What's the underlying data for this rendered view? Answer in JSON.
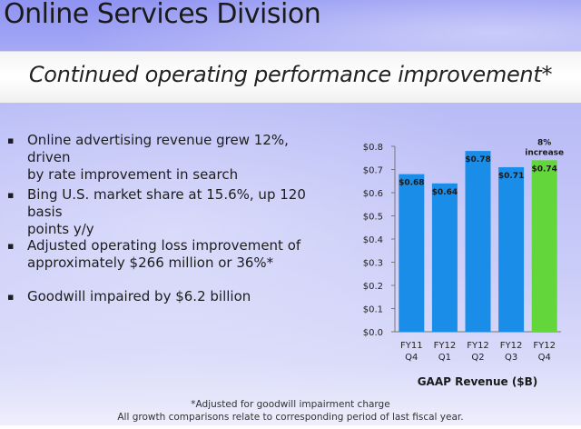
{
  "slide": {
    "title": "Online Services Division",
    "subtitle": "Continued operating performance improvement*",
    "bullets": [
      {
        "line1": "Online advertising revenue grew 12%, driven",
        "line2": "by rate improvement in search"
      },
      {
        "line1": "Bing U.S. market share at 15.6%, up 120 basis",
        "line2": "points y/y"
      },
      {
        "line1": "Adjusted operating loss improvement of",
        "line2": "approximately $266 million or 36%*"
      },
      {
        "line1": "Goodwill impaired by $6.2 billion",
        "line2": ""
      }
    ],
    "bullet_marker": "▪",
    "footnote_1": "*Adjusted for goodwill impairment charge",
    "footnote_2": "All growth comparisons relate to corresponding period of last fiscal year."
  },
  "chart_data": {
    "type": "bar",
    "categories": [
      [
        "FY11",
        "Q4"
      ],
      [
        "FY12",
        "Q1"
      ],
      [
        "FY12",
        "Q2"
      ],
      [
        "FY12",
        "Q3"
      ],
      [
        "FY12",
        "Q4"
      ]
    ],
    "values": [
      0.68,
      0.64,
      0.78,
      0.71,
      0.74
    ],
    "data_labels": [
      "$0.68",
      "$0.64",
      "$0.78",
      "$0.71",
      "$0.74"
    ],
    "xlabel": "GAAP Revenue ($B)",
    "ylim": [
      0,
      0.8
    ],
    "yticks": [
      0.0,
      0.1,
      0.2,
      0.3,
      0.4,
      0.5,
      0.6,
      0.7,
      0.8
    ],
    "ytick_labels": [
      "$0.0",
      "$0.1",
      "$0.2",
      "$0.3",
      "$0.4",
      "$0.5",
      "$0.6",
      "$0.7",
      "$0.8"
    ],
    "annotation": {
      "line1": "8%",
      "line2": "increase",
      "category_index": 4
    },
    "grid": false,
    "colors": {
      "bar": "#1a8de8",
      "highlight_bar": "#62d63a",
      "axis": "#777777"
    }
  }
}
